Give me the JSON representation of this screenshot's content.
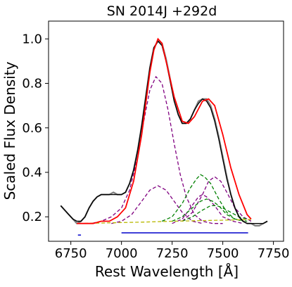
{
  "chart_data": {
    "type": "line",
    "title": "SN 2014J  +292d",
    "xlabel": "Rest Wavelength [Å]",
    "ylabel": "Scaled Flux Density",
    "xlim": [
      6640,
      7800
    ],
    "ylim": [
      0.09,
      1.08
    ],
    "xticks": [
      6750,
      7000,
      7250,
      7500,
      7750
    ],
    "yticks": [
      0.2,
      0.4,
      0.6,
      0.8,
      1.0
    ],
    "xtick_labels": [
      "6750",
      "7000",
      "7250",
      "7500",
      "7750"
    ],
    "ytick_labels": [
      "0.2",
      "0.4",
      "0.6",
      "0.8",
      "1.0"
    ],
    "grid": false,
    "legend": "none",
    "baseline": {
      "x": [
        6790,
        7640
      ],
      "y": [
        0.17,
        0.188
      ]
    },
    "continuum_segments": [
      {
        "x": [
          6785,
          6800
        ],
        "y": 0.118
      },
      {
        "x": [
          7000,
          7625
        ],
        "y": 0.128
      }
    ],
    "series": [
      {
        "role": "observed",
        "color": "#808080",
        "x": [
          6700,
          6720,
          6740,
          6760,
          6780,
          6800,
          6820,
          6840,
          6860,
          6880,
          6900,
          6920,
          6940,
          6960,
          6980,
          7000,
          7020,
          7040,
          7060,
          7080,
          7100,
          7120,
          7140,
          7160,
          7180,
          7200,
          7220,
          7240,
          7260,
          7280,
          7300,
          7320,
          7340,
          7360,
          7380,
          7400,
          7420,
          7440,
          7460,
          7480,
          7500,
          7520,
          7540,
          7560,
          7580,
          7600,
          7620,
          7640,
          7660,
          7680,
          7700,
          7720
        ],
        "y": [
          0.25,
          0.23,
          0.21,
          0.19,
          0.17,
          0.18,
          0.2,
          0.24,
          0.27,
          0.29,
          0.3,
          0.3,
          0.3,
          0.31,
          0.3,
          0.3,
          0.31,
          0.35,
          0.41,
          0.5,
          0.61,
          0.74,
          0.87,
          0.96,
          0.99,
          0.98,
          0.91,
          0.82,
          0.73,
          0.66,
          0.62,
          0.62,
          0.64,
          0.68,
          0.72,
          0.73,
          0.73,
          0.7,
          0.64,
          0.56,
          0.47,
          0.38,
          0.3,
          0.24,
          0.2,
          0.18,
          0.17,
          0.17,
          0.16,
          0.16,
          0.17,
          0.18
        ]
      },
      {
        "role": "smoothed",
        "color": "#000000",
        "x": [
          6700,
          6720,
          6740,
          6760,
          6780,
          6800,
          6820,
          6840,
          6860,
          6880,
          6900,
          6920,
          6940,
          6960,
          6980,
          7000,
          7020,
          7040,
          7060,
          7080,
          7100,
          7120,
          7140,
          7160,
          7180,
          7200,
          7220,
          7240,
          7260,
          7280,
          7300,
          7320,
          7340,
          7360,
          7380,
          7400,
          7420,
          7440,
          7460,
          7480,
          7500,
          7520,
          7540,
          7560,
          7580,
          7600,
          7620,
          7640,
          7660,
          7680,
          7700,
          7720
        ],
        "y": [
          0.25,
          0.23,
          0.21,
          0.19,
          0.18,
          0.18,
          0.2,
          0.24,
          0.27,
          0.29,
          0.3,
          0.3,
          0.3,
          0.3,
          0.3,
          0.3,
          0.31,
          0.35,
          0.41,
          0.5,
          0.61,
          0.74,
          0.87,
          0.96,
          0.99,
          0.97,
          0.9,
          0.81,
          0.72,
          0.66,
          0.62,
          0.62,
          0.64,
          0.68,
          0.71,
          0.73,
          0.72,
          0.69,
          0.63,
          0.55,
          0.46,
          0.37,
          0.3,
          0.24,
          0.2,
          0.18,
          0.17,
          0.17,
          0.17,
          0.17,
          0.17,
          0.18
        ]
      },
      {
        "role": "total-fit",
        "color": "#ff0000",
        "x": [
          6780,
          6820,
          6860,
          6900,
          6940,
          6980,
          7020,
          7060,
          7100,
          7140,
          7160,
          7180,
          7200,
          7220,
          7260,
          7300,
          7330,
          7360,
          7400,
          7430,
          7460,
          7500,
          7540,
          7580,
          7620,
          7640
        ],
        "y": [
          0.17,
          0.17,
          0.17,
          0.18,
          0.18,
          0.2,
          0.24,
          0.36,
          0.57,
          0.85,
          0.95,
          1.0,
          0.98,
          0.9,
          0.74,
          0.63,
          0.62,
          0.65,
          0.72,
          0.73,
          0.7,
          0.57,
          0.42,
          0.3,
          0.21,
          0.19
        ]
      },
      {
        "role": "component",
        "color": "#800080",
        "x": [
          6800,
          6850,
          6900,
          6950,
          7000,
          7040,
          7080,
          7110,
          7140,
          7170,
          7200,
          7230,
          7260,
          7290,
          7320,
          7360,
          7400,
          7450,
          7500
        ],
        "y": [
          0.17,
          0.17,
          0.18,
          0.2,
          0.24,
          0.32,
          0.47,
          0.63,
          0.77,
          0.83,
          0.8,
          0.68,
          0.53,
          0.39,
          0.29,
          0.21,
          0.18,
          0.17,
          0.17
        ]
      },
      {
        "role": "component",
        "color": "#800080",
        "x": [
          6950,
          7000,
          7050,
          7100,
          7140,
          7180,
          7220,
          7260,
          7300,
          7350,
          7400
        ],
        "y": [
          0.17,
          0.18,
          0.21,
          0.27,
          0.32,
          0.34,
          0.32,
          0.27,
          0.22,
          0.18,
          0.17
        ]
      },
      {
        "role": "component",
        "color": "#800080",
        "x": [
          7250,
          7300,
          7340,
          7380,
          7400,
          7420,
          7460,
          7500,
          7550,
          7600
        ],
        "y": [
          0.17,
          0.19,
          0.24,
          0.29,
          0.3,
          0.29,
          0.25,
          0.2,
          0.18,
          0.17
        ]
      },
      {
        "role": "component",
        "color": "#800080",
        "x": [
          7300,
          7350,
          7400,
          7430,
          7460,
          7490,
          7520,
          7560,
          7600,
          7640
        ],
        "y": [
          0.18,
          0.22,
          0.3,
          0.36,
          0.38,
          0.36,
          0.31,
          0.24,
          0.2,
          0.18
        ]
      },
      {
        "role": "component",
        "color": "#008000",
        "x": [
          7200,
          7250,
          7300,
          7340,
          7370,
          7390,
          7410,
          7440,
          7480,
          7520,
          7560,
          7620
        ],
        "y": [
          0.18,
          0.2,
          0.26,
          0.33,
          0.37,
          0.39,
          0.38,
          0.35,
          0.28,
          0.22,
          0.19,
          0.18
        ]
      },
      {
        "role": "component",
        "color": "#008000",
        "x": [
          7250,
          7300,
          7350,
          7390,
          7420,
          7450,
          7480,
          7520,
          7560,
          7600
        ],
        "y": [
          0.18,
          0.2,
          0.24,
          0.27,
          0.28,
          0.27,
          0.25,
          0.21,
          0.19,
          0.18
        ]
      },
      {
        "role": "component",
        "color": "#008000",
        "x": [
          7300,
          7350,
          7400,
          7440,
          7470,
          7500,
          7540,
          7580,
          7620
        ],
        "y": [
          0.18,
          0.2,
          0.23,
          0.25,
          0.25,
          0.24,
          0.22,
          0.2,
          0.19
        ]
      },
      {
        "role": "component",
        "color": "#b8b800",
        "x": [
          6790,
          6900,
          7000,
          7100,
          7200,
          7300,
          7400,
          7500,
          7640
        ],
        "y": [
          0.17,
          0.172,
          0.174,
          0.176,
          0.179,
          0.181,
          0.183,
          0.185,
          0.188
        ]
      }
    ]
  }
}
